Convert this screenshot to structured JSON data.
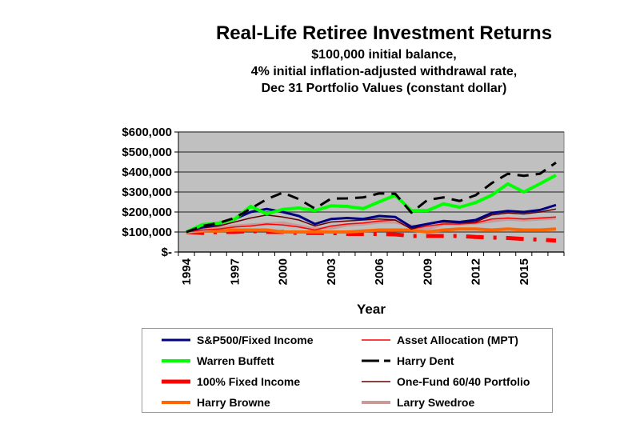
{
  "chart_data": {
    "type": "line",
    "title": "Real-Life Retiree Investment Returns",
    "subtitle": [
      "$100,000 initial balance,",
      "4% initial inflation-adjusted withdrawal rate,",
      "Dec 31 Portfolio Values (constant dollar)"
    ],
    "xlabel": "Year",
    "ylabel": "",
    "ylim": [
      0,
      600000
    ],
    "yticks": [
      0,
      100000,
      200000,
      300000,
      400000,
      500000,
      600000
    ],
    "ytick_labels": [
      "$-",
      "$100,000",
      "$200,000",
      "$300,000",
      "$400,000",
      "$500,000",
      "$600,000"
    ],
    "x": [
      1994,
      1995,
      1996,
      1997,
      1998,
      1999,
      2000,
      2001,
      2002,
      2003,
      2004,
      2005,
      2006,
      2007,
      2008,
      2009,
      2010,
      2011,
      2012,
      2013,
      2014,
      2015,
      2016,
      2017
    ],
    "xtick_labels": [
      "1994",
      "1997",
      "2000",
      "2003",
      "2006",
      "2009",
      "2012",
      "2015"
    ],
    "grid": true,
    "plot_background": "#c0c0c0",
    "legend_position": "bottom",
    "series": [
      {
        "name": "S&P500/Fixed Income",
        "color": "#000080",
        "style": "solid",
        "values": [
          100000,
          125000,
          140000,
          165000,
          200000,
          215000,
          200000,
          180000,
          140000,
          165000,
          170000,
          165000,
          180000,
          175000,
          125000,
          140000,
          155000,
          150000,
          160000,
          195000,
          205000,
          200000,
          210000,
          235000
        ]
      },
      {
        "name": "Asset Allocation (MPT)",
        "color": "#ff0000",
        "style": "thin",
        "values": [
          100000,
          110000,
          115000,
          125000,
          130000,
          140000,
          135000,
          125000,
          110000,
          130000,
          140000,
          145000,
          155000,
          160000,
          115000,
          130000,
          140000,
          140000,
          145000,
          165000,
          170000,
          165000,
          170000,
          175000
        ]
      },
      {
        "name": "Warren Buffett",
        "color": "#00ff00",
        "style": "thick",
        "values": [
          100000,
          137000,
          144000,
          164000,
          228000,
          191000,
          213000,
          220000,
          207000,
          231000,
          228000,
          217000,
          251000,
          284000,
          207000,
          207000,
          241000,
          224000,
          247000,
          284000,
          341000,
          300000,
          341000,
          384000
        ]
      },
      {
        "name": "Harry Dent",
        "color": "#000000",
        "style": "dash",
        "values": [
          100000,
          130000,
          145000,
          170000,
          217000,
          264000,
          297000,
          264000,
          217000,
          267000,
          268000,
          273000,
          293000,
          291000,
          197000,
          260000,
          273000,
          255000,
          284000,
          344000,
          391000,
          381000,
          391000,
          447000
        ]
      },
      {
        "name": "100% Fixed Income",
        "color": "#ff0000",
        "style": "dashdot",
        "values": [
          100000,
          95000,
          100000,
          100000,
          105000,
          100000,
          100000,
          95000,
          95000,
          95000,
          90000,
          90000,
          90000,
          88000,
          80000,
          80000,
          80000,
          80000,
          75000,
          72000,
          70000,
          65000,
          62000,
          57000
        ]
      },
      {
        "name": "One-Fund 60/40 Portfolio",
        "color": "#660000",
        "style": "thin",
        "values": [
          100000,
          120000,
          130000,
          150000,
          170000,
          185000,
          175000,
          160000,
          130000,
          150000,
          155000,
          160000,
          165000,
          160000,
          115000,
          140000,
          150000,
          145000,
          150000,
          185000,
          195000,
          190000,
          200000,
          215000
        ]
      },
      {
        "name": "Harry Browne",
        "color": "#ff6600",
        "style": "thick",
        "values": [
          100000,
          105000,
          105000,
          110000,
          110000,
          110000,
          100000,
          100000,
          100000,
          100000,
          100000,
          105000,
          110000,
          110000,
          110000,
          100000,
          110000,
          115000,
          115000,
          110000,
          115000,
          110000,
          110000,
          115000
        ]
      },
      {
        "name": "Larry Swedroe",
        "color": "#cc9999",
        "style": "thick",
        "values": [
          100000,
          110000,
          120000,
          130000,
          135000,
          140000,
          145000,
          130000,
          115000,
          120000,
          135000,
          140000,
          150000,
          150000,
          130000,
          115000,
          140000,
          140000,
          145000,
          155000,
          165000,
          160000,
          165000,
          170000
        ]
      }
    ]
  }
}
